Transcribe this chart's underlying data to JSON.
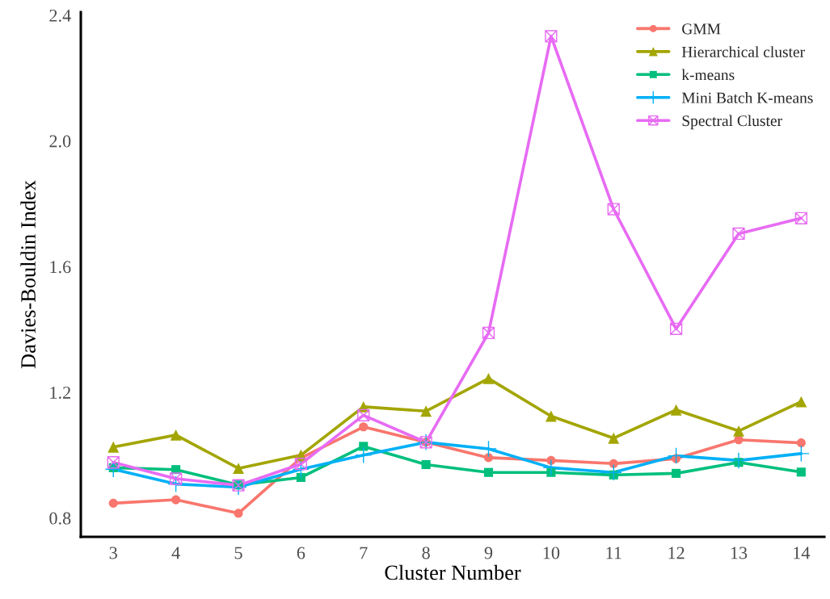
{
  "chart_data": {
    "type": "line",
    "xlabel": "Cluster Number",
    "ylabel": "Davies-Bouldin Index",
    "x": [
      3,
      4,
      5,
      6,
      7,
      8,
      9,
      10,
      11,
      12,
      13,
      14
    ],
    "series": [
      {
        "name": "GMM",
        "color": "#f8766d",
        "marker": "circle",
        "values": [
          0.847,
          0.858,
          0.815,
          0.991,
          1.09,
          1.041,
          0.992,
          0.983,
          0.973,
          0.989,
          1.049,
          1.039
        ]
      },
      {
        "name": "Hierarchical cluster",
        "color": "#a3a500",
        "marker": "triangle",
        "values": [
          1.026,
          1.064,
          0.958,
          1.0,
          1.154,
          1.14,
          1.244,
          1.124,
          1.054,
          1.144,
          1.077,
          1.17
        ]
      },
      {
        "name": "k-means",
        "color": "#00bf7d",
        "marker": "square",
        "values": [
          0.96,
          0.954,
          0.905,
          0.929,
          1.028,
          0.97,
          0.945,
          0.945,
          0.937,
          0.942,
          0.977,
          0.946
        ]
      },
      {
        "name": "Mini Batch K-means",
        "color": "#00b0f6",
        "marker": "cross",
        "values": [
          0.955,
          0.908,
          0.898,
          0.955,
          1.0,
          1.041,
          1.02,
          0.96,
          0.945,
          0.998,
          0.983,
          1.005
        ]
      },
      {
        "name": "Spectral Cluster",
        "color": "#e76bf3",
        "marker": "cross",
        "values": [
          0.977,
          0.925,
          0.904,
          0.972,
          1.127,
          1.041,
          1.389,
          2.333,
          1.783,
          1.402,
          1.705,
          1.754
        ]
      }
    ],
    "xlim": [
      2.48,
      14.37
    ],
    "xticks": [
      3,
      4,
      5,
      6,
      7,
      8,
      9,
      10,
      11,
      12,
      13,
      14
    ],
    "ylim": [
      0.74,
      2.41
    ],
    "yticks": [
      {
        "value": 0.8,
        "label": "0.8"
      },
      {
        "value": 1.2,
        "label": "1.2"
      },
      {
        "value": 1.6,
        "label": "1.6"
      },
      {
        "value": 2.0,
        "label": "2.0"
      },
      {
        "value": 2.4,
        "label": "2.4"
      }
    ],
    "grid": false,
    "legend": "top right",
    "line_style": "solid"
  }
}
